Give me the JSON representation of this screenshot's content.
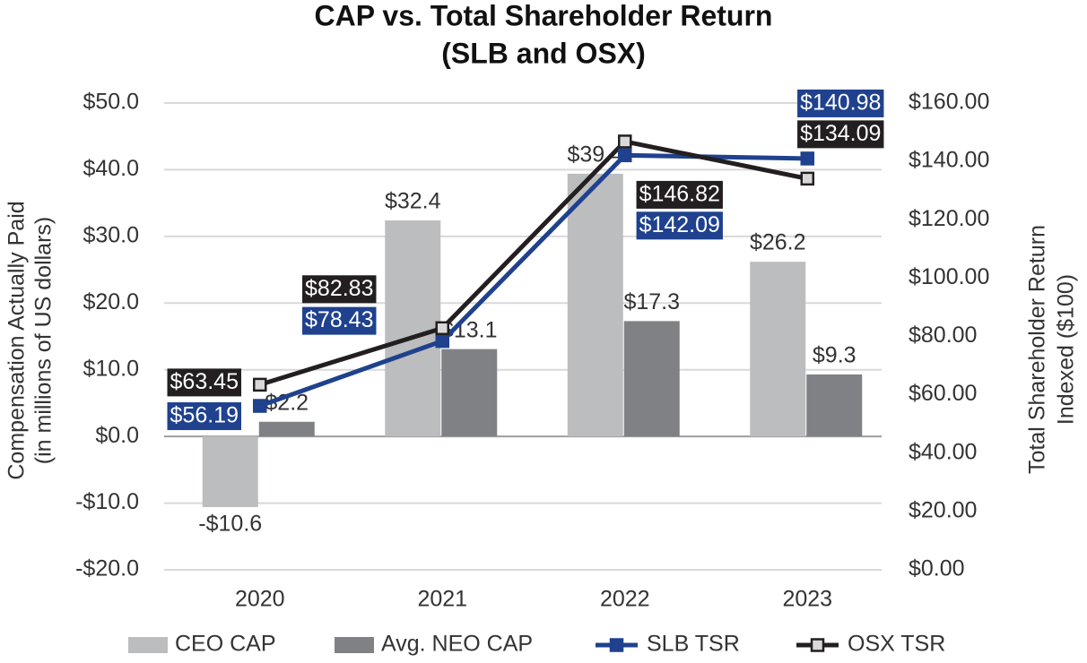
{
  "chart_data": {
    "type": "bar_line",
    "title": [
      "CAP vs. Total Shareholder Return",
      "(SLB and OSX)"
    ],
    "y_label": [
      "Compensation Actually Paid",
      "(in millions of US dollars)"
    ],
    "y2_label": [
      "Total Shareholder Return",
      "Indexed ($100)"
    ],
    "categories": [
      "2020",
      "2021",
      "2022",
      "2023"
    ],
    "ylim": [
      -20,
      50
    ],
    "yticks": [
      {
        "value": -20,
        "label": "-$20.0"
      },
      {
        "value": -10,
        "label": "-$10.0"
      },
      {
        "value": 0,
        "label": "$0.0"
      },
      {
        "value": 10,
        "label": "$10.0"
      },
      {
        "value": 20,
        "label": "$20.0"
      },
      {
        "value": 30,
        "label": "$30.0"
      },
      {
        "value": 40,
        "label": "$40.0"
      },
      {
        "value": 50,
        "label": "$50.0"
      }
    ],
    "y2lim": [
      0,
      160
    ],
    "y2ticks": [
      {
        "value": 0,
        "label": "$0.00"
      },
      {
        "value": 20,
        "label": "$20.00"
      },
      {
        "value": 40,
        "label": "$40.00"
      },
      {
        "value": 60,
        "label": "$60.00"
      },
      {
        "value": 80,
        "label": "$80.00"
      },
      {
        "value": 100,
        "label": "$100.00"
      },
      {
        "value": 120,
        "label": "$120.00"
      },
      {
        "value": 140,
        "label": "$140.00"
      },
      {
        "value": 160,
        "label": "$160.00"
      }
    ],
    "grid": true,
    "series": [
      {
        "name": "CEO CAP",
        "type": "bar",
        "color": "#bcbdbf",
        "values": [
          -10.6,
          32.4,
          39.4,
          26.2
        ],
        "value_labels": [
          "-$10.6",
          "$32.4",
          "$39.4",
          "$26.2"
        ]
      },
      {
        "name": "Avg. NEO CAP",
        "type": "bar",
        "color": "#808184",
        "values": [
          2.2,
          13.1,
          17.3,
          9.3
        ],
        "value_labels": [
          "$2.2",
          "$13.1",
          "$17.3",
          "$9.3"
        ]
      },
      {
        "name": "SLB TSR",
        "type": "line",
        "axis": "y2",
        "color": "#1f418e",
        "values": [
          56.19,
          78.43,
          142.09,
          140.98
        ],
        "value_labels": [
          "$56.19",
          "$78.43",
          "$142.09",
          "$140.98"
        ]
      },
      {
        "name": "OSX TSR",
        "type": "line",
        "axis": "y2",
        "color": "#231f20",
        "values": [
          63.45,
          82.83,
          146.82,
          134.09
        ],
        "value_labels": [
          "$63.45",
          "$82.83",
          "$146.82",
          "$134.09"
        ]
      }
    ]
  }
}
